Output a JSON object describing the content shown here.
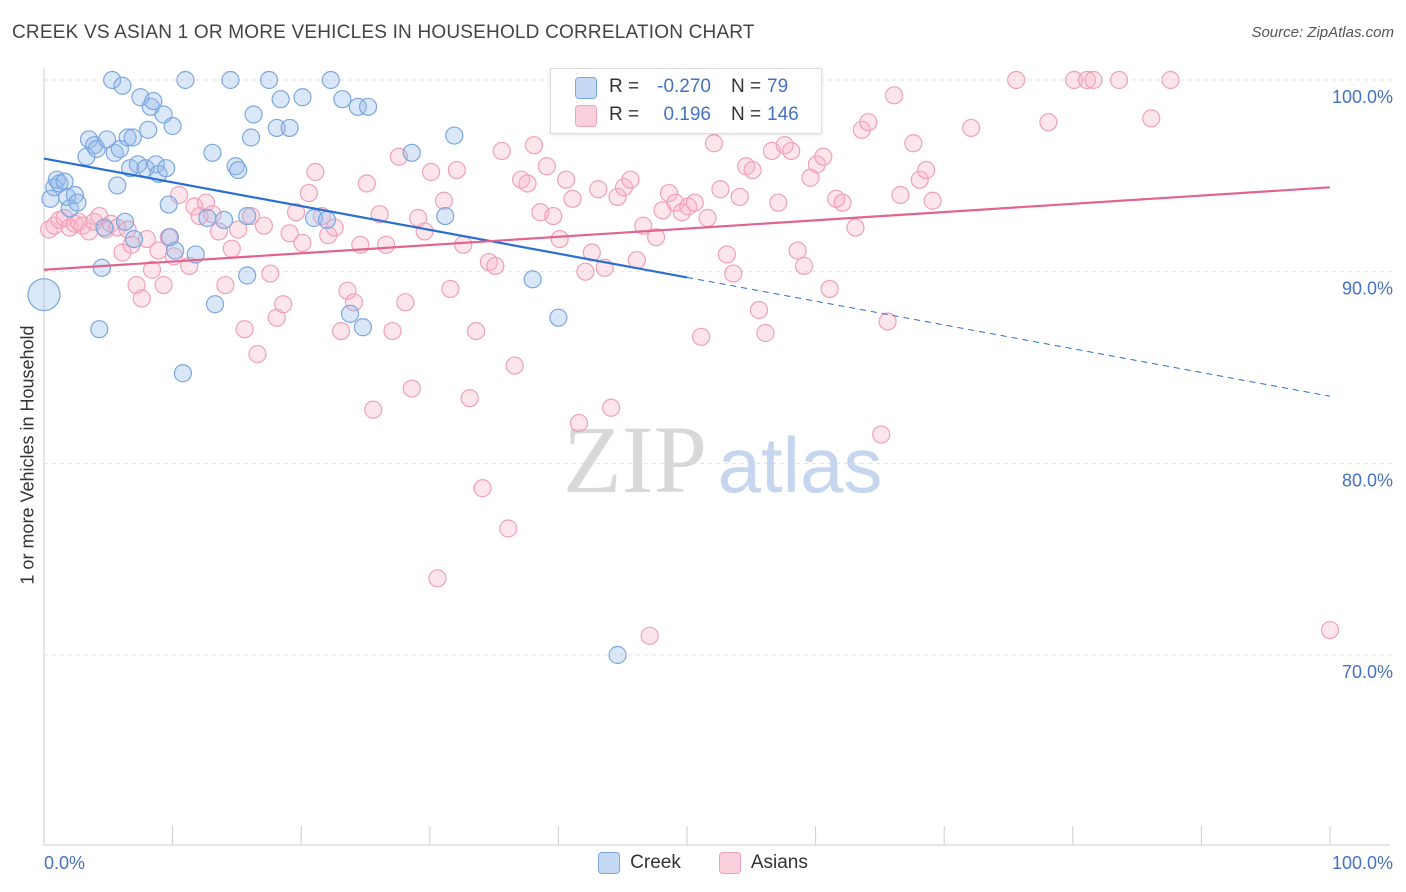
{
  "title": "CREEK VS ASIAN 1 OR MORE VEHICLES IN HOUSEHOLD CORRELATION CHART",
  "source": "Source: ZipAtlas.com",
  "watermark": {
    "zip": "ZIP",
    "atlas": "atlas"
  },
  "legend": {
    "creek": {
      "r_label": "R =",
      "r_value": "-0.270",
      "n_label": "N =",
      "n_value": "79",
      "color": "#7ba7e0"
    },
    "asians": {
      "r_label": "R =",
      "r_value": "0.196",
      "n_label": "N =",
      "n_value": "146",
      "color": "#f0a0b8"
    }
  },
  "bottom_legend": {
    "creek": "Creek",
    "asians": "Asians"
  },
  "chart_data": {
    "type": "scatter",
    "title": "CREEK VS ASIAN 1 OR MORE VEHICLES IN HOUSEHOLD CORRELATION CHART",
    "xlabel": "",
    "ylabel": "1 or more Vehicles in Household",
    "xlim": [
      0,
      100
    ],
    "ylim": [
      60.5,
      101.5
    ],
    "x_tick_labels": [
      {
        "value": 0,
        "label": "0.0%"
      },
      {
        "value": 100,
        "label": "100.0%"
      }
    ],
    "y_tick_labels": [
      {
        "value": 100,
        "label": "100.0%"
      },
      {
        "value": 90,
        "label": "90.0%"
      },
      {
        "value": 80,
        "label": "80.0%"
      },
      {
        "value": 70,
        "label": "70.0%"
      }
    ],
    "grid": true,
    "series": [
      {
        "name": "Creek",
        "color": "#7ba7e0",
        "line_color": "#2a6fd0",
        "trend": {
          "x_start": 0,
          "y_start": 95.9,
          "x_solid_end": 50,
          "y_solid_end": 89.7,
          "x_end": 100,
          "y_end": 83.5
        },
        "points": [
          [
            0,
            88.8
          ],
          [
            0.5,
            93.8
          ],
          [
            0.8,
            94.4
          ],
          [
            1,
            94.8
          ],
          [
            1.2,
            94.6
          ],
          [
            1.6,
            94.7
          ],
          [
            1.8,
            93.9
          ],
          [
            2,
            93.3
          ],
          [
            2.4,
            94.0
          ],
          [
            2.6,
            93.6
          ],
          [
            3.3,
            96.0
          ],
          [
            3.5,
            96.9
          ],
          [
            3.9,
            96.6
          ],
          [
            4.1,
            96.4
          ],
          [
            4.3,
            87.0
          ],
          [
            4.5,
            90.2
          ],
          [
            4.7,
            92.3
          ],
          [
            4.9,
            96.9
          ],
          [
            5.3,
            100
          ],
          [
            5.5,
            96.2
          ],
          [
            5.7,
            94.5
          ],
          [
            5.9,
            96.4
          ],
          [
            6.3,
            92.6
          ],
          [
            6.1,
            99.7
          ],
          [
            6.5,
            97.0
          ],
          [
            6.7,
            95.4
          ],
          [
            6.9,
            97.0
          ],
          [
            7,
            91.7
          ],
          [
            7.3,
            95.6
          ],
          [
            7.5,
            99.1
          ],
          [
            7.9,
            95.4
          ],
          [
            8.1,
            97.4
          ],
          [
            8.3,
            98.6
          ],
          [
            8.5,
            98.9
          ],
          [
            8.7,
            95.6
          ],
          [
            8.9,
            95.1
          ],
          [
            9.3,
            98.2
          ],
          [
            9.5,
            95.4
          ],
          [
            9.7,
            93.5
          ],
          [
            9.8,
            91.8
          ],
          [
            10,
            97.6
          ],
          [
            10.2,
            91.1
          ],
          [
            10.8,
            84.7
          ],
          [
            11,
            100
          ],
          [
            11.8,
            90.9
          ],
          [
            12.7,
            92.8
          ],
          [
            13.1,
            96.2
          ],
          [
            13.3,
            88.3
          ],
          [
            14,
            92.7
          ],
          [
            14.5,
            100
          ],
          [
            14.9,
            95.5
          ],
          [
            15.1,
            95.3
          ],
          [
            15.8,
            92.9
          ],
          [
            15.8,
            89.8
          ],
          [
            16.1,
            97.0
          ],
          [
            16.3,
            98.2
          ],
          [
            17.5,
            100
          ],
          [
            18.1,
            97.5
          ],
          [
            18.4,
            99.0
          ],
          [
            19.1,
            97.5
          ],
          [
            20.1,
            99.1
          ],
          [
            21,
            92.8
          ],
          [
            22,
            92.7
          ],
          [
            22.3,
            100
          ],
          [
            23.2,
            99.0
          ],
          [
            23.8,
            87.8
          ],
          [
            24.4,
            98.6
          ],
          [
            24.8,
            87.1
          ],
          [
            25.2,
            98.6
          ],
          [
            28.6,
            96.2
          ],
          [
            31.2,
            92.9
          ],
          [
            31.9,
            97.1
          ],
          [
            38,
            89.6
          ],
          [
            40,
            87.6
          ],
          [
            44.6,
            70.0
          ]
        ]
      },
      {
        "name": "Asians",
        "color": "#f0a0b8",
        "line_color": "#e0648e",
        "trend": {
          "x_start": 0,
          "y_start": 90.1,
          "x_end": 100,
          "y_end": 94.4
        },
        "points": [
          [
            0.4,
            92.2
          ],
          [
            0.8,
            92.4
          ],
          [
            1.2,
            92.7
          ],
          [
            1.6,
            92.8
          ],
          [
            2,
            92.3
          ],
          [
            2.4,
            92.5
          ],
          [
            2.7,
            92.6
          ],
          [
            3,
            92.4
          ],
          [
            3.5,
            92.1
          ],
          [
            3.9,
            92.6
          ],
          [
            4.3,
            92.9
          ],
          [
            4.8,
            92.2
          ],
          [
            5.2,
            92.5
          ],
          [
            5.7,
            92.3
          ],
          [
            6.1,
            91.0
          ],
          [
            6.5,
            92.2
          ],
          [
            6.8,
            91.4
          ],
          [
            7.2,
            89.3
          ],
          [
            7.6,
            88.6
          ],
          [
            8,
            91.7
          ],
          [
            8.4,
            90.1
          ],
          [
            8.9,
            91.1
          ],
          [
            9.3,
            89.3
          ],
          [
            9.7,
            91.8
          ],
          [
            10.1,
            90.8
          ],
          [
            10.5,
            94.0
          ],
          [
            11.3,
            90.3
          ],
          [
            11.7,
            93.4
          ],
          [
            12.1,
            92.9
          ],
          [
            12.6,
            93.6
          ],
          [
            13.1,
            93.0
          ],
          [
            13.6,
            92.1
          ],
          [
            14.1,
            89.3
          ],
          [
            14.6,
            91.2
          ],
          [
            15.1,
            92.2
          ],
          [
            15.6,
            87.0
          ],
          [
            16.1,
            92.9
          ],
          [
            16.6,
            85.7
          ],
          [
            17.1,
            92.4
          ],
          [
            17.6,
            89.9
          ],
          [
            18.1,
            87.6
          ],
          [
            18.6,
            88.3
          ],
          [
            19.1,
            92.0
          ],
          [
            19.6,
            93.1
          ],
          [
            20.1,
            91.5
          ],
          [
            20.6,
            94.1
          ],
          [
            21.1,
            95.2
          ],
          [
            21.6,
            92.9
          ],
          [
            22.1,
            91.9
          ],
          [
            22.6,
            92.3
          ],
          [
            23.1,
            86.9
          ],
          [
            23.6,
            89.0
          ],
          [
            24.1,
            88.4
          ],
          [
            24.6,
            91.4
          ],
          [
            25.1,
            94.6
          ],
          [
            25.6,
            82.8
          ],
          [
            26.1,
            93.0
          ],
          [
            26.6,
            91.4
          ],
          [
            27.1,
            86.9
          ],
          [
            27.6,
            96.0
          ],
          [
            28.1,
            88.4
          ],
          [
            28.6,
            83.9
          ],
          [
            29.1,
            92.8
          ],
          [
            29.6,
            92.1
          ],
          [
            30.1,
            95.2
          ],
          [
            30.6,
            74.0
          ],
          [
            31.1,
            93.7
          ],
          [
            31.6,
            89.1
          ],
          [
            32.1,
            95.3
          ],
          [
            32.6,
            91.4
          ],
          [
            33.1,
            83.4
          ],
          [
            33.6,
            86.9
          ],
          [
            34.1,
            78.7
          ],
          [
            34.6,
            90.5
          ],
          [
            35.1,
            90.3
          ],
          [
            35.6,
            96.3
          ],
          [
            36.1,
            76.6
          ],
          [
            36.6,
            85.1
          ],
          [
            37.1,
            94.8
          ],
          [
            37.6,
            94.6
          ],
          [
            38.1,
            96.6
          ],
          [
            38.6,
            93.1
          ],
          [
            39.1,
            95.5
          ],
          [
            39.6,
            92.9
          ],
          [
            40.1,
            91.7
          ],
          [
            40.6,
            94.8
          ],
          [
            41.1,
            93.8
          ],
          [
            41.6,
            82.1
          ],
          [
            42.1,
            90.0
          ],
          [
            42.6,
            91.0
          ],
          [
            43.1,
            94.3
          ],
          [
            43.6,
            90.2
          ],
          [
            44.1,
            82.9
          ],
          [
            44.6,
            93.9
          ],
          [
            45.1,
            94.4
          ],
          [
            45.6,
            94.8
          ],
          [
            46.1,
            90.6
          ],
          [
            46.6,
            92.4
          ],
          [
            47.1,
            71.0
          ],
          [
            47.6,
            91.8
          ],
          [
            48.1,
            93.2
          ],
          [
            48.6,
            94.1
          ],
          [
            49.1,
            93.6
          ],
          [
            49.6,
            93.1
          ],
          [
            50.1,
            93.4
          ],
          [
            50.6,
            93.6
          ],
          [
            51.1,
            86.6
          ],
          [
            51.6,
            92.8
          ],
          [
            52.1,
            96.7
          ],
          [
            52.6,
            94.3
          ],
          [
            53.1,
            90.9
          ],
          [
            53.6,
            89.9
          ],
          [
            54.1,
            93.9
          ],
          [
            54.6,
            95.5
          ],
          [
            55.1,
            95.3
          ],
          [
            55.6,
            88.0
          ],
          [
            56.1,
            86.8
          ],
          [
            56.6,
            96.3
          ],
          [
            57.1,
            93.6
          ],
          [
            57.6,
            96.6
          ],
          [
            58.1,
            96.3
          ],
          [
            58.6,
            91.1
          ],
          [
            59.1,
            90.3
          ],
          [
            59.6,
            94.9
          ],
          [
            60.1,
            95.6
          ],
          [
            60.6,
            96.0
          ],
          [
            61.1,
            89.1
          ],
          [
            61.6,
            93.8
          ],
          [
            62.1,
            93.6
          ],
          [
            63.1,
            92.3
          ],
          [
            63.6,
            97.4
          ],
          [
            64.1,
            97.8
          ],
          [
            65.1,
            81.5
          ],
          [
            65.6,
            87.4
          ],
          [
            66.1,
            99.2
          ],
          [
            66.6,
            94.0
          ],
          [
            67.6,
            96.7
          ],
          [
            68.1,
            94.8
          ],
          [
            68.6,
            95.3
          ],
          [
            69.1,
            93.7
          ],
          [
            72.1,
            97.5
          ],
          [
            75.6,
            100
          ],
          [
            78.1,
            97.8
          ],
          [
            80.1,
            100
          ],
          [
            81.1,
            100
          ],
          [
            81.6,
            100
          ],
          [
            83.6,
            100
          ],
          [
            86.1,
            98.0
          ],
          [
            87.6,
            100
          ],
          [
            100,
            71.3
          ]
        ]
      }
    ]
  }
}
